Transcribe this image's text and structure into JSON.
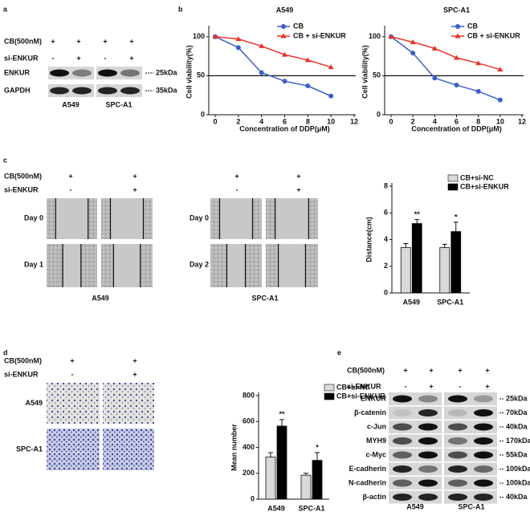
{
  "panel_labels": [
    "a",
    "b",
    "c",
    "d",
    "e"
  ],
  "blot_a": {
    "treatments": [
      {
        "label": "CB(500nM)",
        "marks": [
          "+",
          "+",
          "+",
          "+"
        ]
      },
      {
        "label": "si-ENKUR",
        "marks": [
          "-",
          "+",
          "-",
          "+"
        ]
      }
    ],
    "rows": [
      "ENKUR",
      "GAPDH"
    ],
    "markers": [
      "25kDa",
      "35kDa"
    ],
    "cell_lines": [
      "A549",
      "SPC-A1"
    ]
  },
  "migration_c": {
    "treatments": [
      {
        "label": "CB(500nM)",
        "marks": [
          "+",
          "+",
          "+",
          "+"
        ]
      },
      {
        "label": "si-ENKUR",
        "marks": [
          "-",
          "+",
          "-",
          "+"
        ]
      }
    ],
    "days": [
      "Day 0",
      "Day 1",
      "Day 0",
      "Day 2"
    ],
    "cell_lines": [
      "A549",
      "SPC-A1"
    ]
  },
  "invasion_d": {
    "treatments": [
      {
        "label": "CB(500nM)",
        "marks": [
          "+",
          "+"
        ]
      },
      {
        "label": "si-ENKUR",
        "marks": [
          "-",
          "+"
        ]
      }
    ],
    "rows": [
      "A549",
      "SPC-A1"
    ]
  },
  "blot_e": {
    "treatments": [
      {
        "label": "CB(500nM)",
        "marks": [
          "+",
          "+",
          "+",
          "+"
        ]
      },
      {
        "label": "si-ENKUR",
        "marks": [
          "-",
          "+",
          "-",
          "+"
        ]
      }
    ],
    "rows": [
      "ENKUR",
      "β-catenin",
      "c-Jun",
      "MYH9",
      "c-Myc",
      "E-cadherin",
      "N-cadherin",
      "β-actin"
    ],
    "markers": [
      "25kDa",
      "70kDa",
      "40kDa",
      "170kDa",
      "55kDa",
      "100kDa",
      "100kDa",
      "40kDa"
    ],
    "cell_lines": [
      "A549",
      "SPC-A1"
    ]
  },
  "chart_data": [
    {
      "type": "line",
      "title": "A549",
      "x_label": "Concentration of DDP(μM)",
      "y_label": "Cell viability(%)",
      "x": [
        0,
        2,
        4,
        6,
        8,
        10
      ],
      "xlim": [
        0,
        12
      ],
      "xticks": [
        0,
        2,
        4,
        6,
        8,
        10,
        12
      ],
      "ylim": [
        0,
        110
      ],
      "yticks": [
        0,
        50,
        100
      ],
      "hline": 50,
      "legend": "upper right",
      "series": [
        {
          "name": "CB",
          "color": "#3b5fc8",
          "marker": "circle",
          "values": [
            100,
            86,
            54,
            43,
            37,
            24
          ]
        },
        {
          "name": "CB + si-ENKUR",
          "color": "#e8332a",
          "marker": "triangle",
          "values": [
            100,
            97,
            88,
            77,
            70,
            61
          ]
        }
      ]
    },
    {
      "type": "line",
      "title": "SPC-A1",
      "x_label": "Concentration of DDP(μM)",
      "y_label": "Cell viability(%)",
      "x": [
        0,
        2,
        4,
        6,
        8,
        10
      ],
      "xlim": [
        0,
        12
      ],
      "xticks": [
        0,
        2,
        4,
        6,
        8,
        10,
        12
      ],
      "ylim": [
        0,
        110
      ],
      "yticks": [
        0,
        50,
        100
      ],
      "hline": 50,
      "legend": "upper right",
      "series": [
        {
          "name": "CB",
          "color": "#3b5fc8",
          "marker": "circle",
          "values": [
            100,
            79,
            47,
            38,
            30,
            19
          ]
        },
        {
          "name": "CB + si-ENKUR",
          "color": "#e8332a",
          "marker": "triangle",
          "values": [
            100,
            93,
            85,
            73,
            66,
            58
          ]
        }
      ]
    },
    {
      "type": "bar",
      "y_label": "Distance(cm)",
      "categories": [
        "A549",
        "SPC-A1"
      ],
      "ylim": [
        0,
        8
      ],
      "yticks": [
        0,
        2,
        4,
        6,
        8
      ],
      "legend": "upper right",
      "series": [
        {
          "name": "CB+si-NC",
          "color": "#d9d9d9",
          "values": [
            3.4,
            3.4
          ],
          "errors": [
            0.3,
            0.25
          ]
        },
        {
          "name": "CB+si-ENKUR",
          "color": "#000000",
          "values": [
            5.2,
            4.6
          ],
          "errors": [
            0.3,
            0.7
          ]
        }
      ],
      "significance": [
        "**",
        "*"
      ]
    },
    {
      "type": "bar",
      "y_label": "Mean number",
      "categories": [
        "A549",
        "SPC-A1"
      ],
      "ylim": [
        0,
        800
      ],
      "yticks": [
        0,
        200,
        400,
        600,
        800
      ],
      "legend": "upper right",
      "series": [
        {
          "name": "CB+si-NC",
          "color": "#d9d9d9",
          "values": [
            325,
            185
          ],
          "errors": [
            35,
            15
          ]
        },
        {
          "name": "CB+si-ENKUR",
          "color": "#000000",
          "values": [
            565,
            300
          ],
          "errors": [
            50,
            60
          ]
        }
      ],
      "significance": [
        "**",
        "*"
      ]
    }
  ]
}
